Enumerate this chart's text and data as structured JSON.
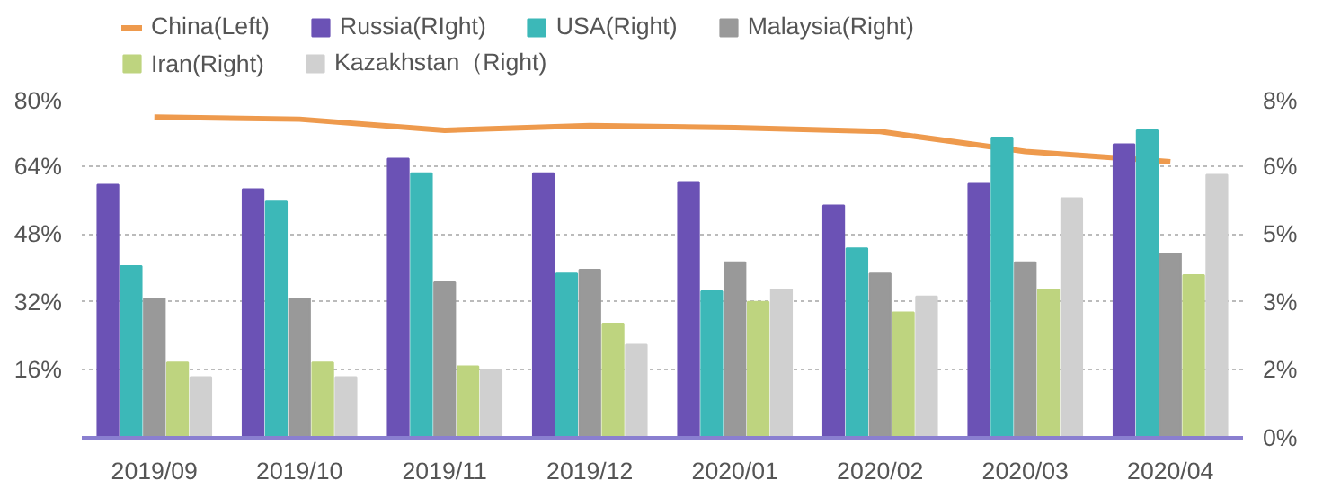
{
  "chart_data": {
    "type": "bar",
    "categories": [
      "2019/09",
      "2019/10",
      "2019/11",
      "2019/12",
      "2020/01",
      "2020/02",
      "2020/03",
      "2020/04"
    ],
    "series": [
      {
        "name": "China(Left)",
        "type": "line",
        "color": "#ee9a4d",
        "values": [
          75.5,
          75.0,
          72.4,
          73.5,
          73.0,
          72.1,
          67.4,
          65.0
        ]
      },
      {
        "name": "Russia(RIght)",
        "color": "#6b52b5",
        "axis": "y2",
        "values": [
          5.96,
          5.85,
          6.57,
          6.23,
          6.02,
          5.47,
          5.98,
          6.91
        ]
      },
      {
        "name": "USA(Right)",
        "color": "#3cb8b8",
        "axis": "y2",
        "values": [
          4.04,
          5.56,
          6.23,
          3.87,
          3.45,
          4.46,
          7.07,
          7.24
        ]
      },
      {
        "name": "Malaysia(Right)",
        "color": "#999999",
        "axis": "y2",
        "values": [
          3.28,
          3.28,
          3.66,
          3.96,
          4.13,
          3.87,
          4.13,
          4.34
        ]
      },
      {
        "name": "Iran(Right)",
        "color": "#bed47f",
        "axis": "y2",
        "values": [
          1.77,
          1.77,
          1.68,
          2.69,
          3.2,
          2.95,
          3.49,
          3.83
        ]
      },
      {
        "name": "Kazakhstan（Right)",
        "color": "#d0d0d0",
        "axis": "y2",
        "values": [
          1.43,
          1.43,
          1.6,
          2.19,
          3.49,
          3.33,
          5.64,
          6.19
        ]
      }
    ],
    "ylim": [
      0,
      80
    ],
    "yticks": [
      {
        "value": 0,
        "label": null
      },
      {
        "value": 16,
        "label": "16%"
      },
      {
        "value": 32,
        "label": "32%"
      },
      {
        "value": 48,
        "label": "48%"
      },
      {
        "value": 64,
        "label": "64%"
      },
      {
        "value": 80,
        "label": "80%"
      }
    ],
    "y2lim": [
      0,
      8
    ],
    "y2ticks": [
      {
        "value": 0,
        "label": "0%"
      },
      {
        "value": 1.6,
        "label": "2%"
      },
      {
        "value": 3.2,
        "label": "3%"
      },
      {
        "value": 4.8,
        "label": "5%"
      },
      {
        "value": 6.4,
        "label": "6%"
      },
      {
        "value": 8,
        "label": "8%"
      }
    ],
    "grid": "y",
    "legend": "top",
    "marker": "none",
    "line_style": "solid"
  }
}
